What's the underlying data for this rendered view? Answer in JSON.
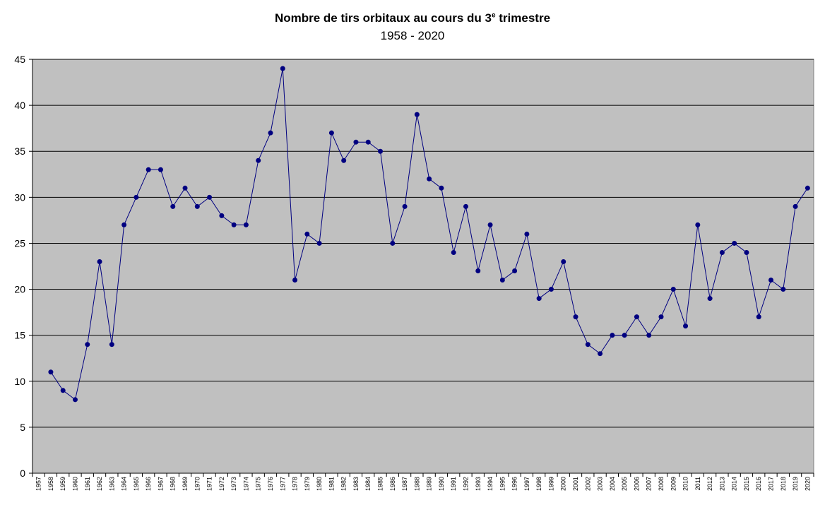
{
  "chart_data": {
    "type": "line",
    "title": "Nombre de tirs orbitaux au cours du 3e trimestre",
    "title_parts": {
      "before": "Nombre de tirs orbitaux au cours du 3",
      "superscript": "e",
      "after": " trimestre"
    },
    "subtitle": "1958 - 2020",
    "xlabel": "",
    "ylabel": "",
    "ylim": [
      0,
      45
    ],
    "yticks": [
      0,
      5,
      10,
      15,
      20,
      25,
      30,
      35,
      40,
      45
    ],
    "grid": true,
    "legend": "none",
    "colors": {
      "line": "#000080",
      "marker": "#000080",
      "plot_background": "#c0c0c0",
      "gridline": "#000000"
    },
    "categories": [
      "1957",
      "1958",
      "1959",
      "1960",
      "1961",
      "1962",
      "1963",
      "1964",
      "1965",
      "1966",
      "1967",
      "1968",
      "1969",
      "1970",
      "1971",
      "1972",
      "1973",
      "1974",
      "1975",
      "1976",
      "1977",
      "1978",
      "1979",
      "1980",
      "1981",
      "1982",
      "1983",
      "1984",
      "1985",
      "1986",
      "1987",
      "1988",
      "1989",
      "1990",
      "1991",
      "1992",
      "1993",
      "1994",
      "1995",
      "1996",
      "1997",
      "1998",
      "1999",
      "2000",
      "2001",
      "2002",
      "2003",
      "2004",
      "2005",
      "2006",
      "2007",
      "2008",
      "2009",
      "2010",
      "2011",
      "2012",
      "2013",
      "2014",
      "2015",
      "2016",
      "2017",
      "2018",
      "2019",
      "2020"
    ],
    "series": [
      {
        "values": [
          null,
          11,
          9,
          8,
          14,
          23,
          14,
          27,
          30,
          33,
          33,
          29,
          31,
          29,
          30,
          28,
          27,
          27,
          34,
          37,
          44,
          21,
          26,
          25,
          37,
          34,
          36,
          36,
          35,
          25,
          29,
          39,
          32,
          31,
          24,
          29,
          22,
          27,
          21,
          22,
          26,
          19,
          20,
          23,
          17,
          14,
          13,
          15,
          15,
          17,
          15,
          17,
          20,
          16,
          27,
          19,
          24,
          25,
          24,
          17,
          21,
          20,
          29,
          31
        ]
      }
    ]
  }
}
